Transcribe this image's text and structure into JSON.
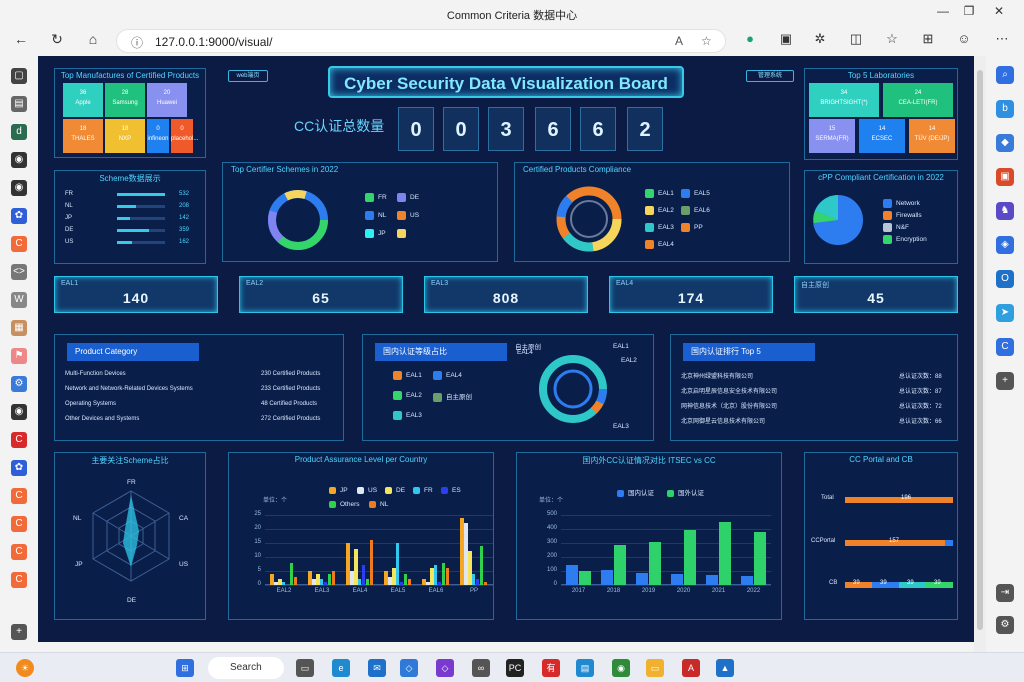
{
  "browser": {
    "window_title": "Common Criteria 数据中心",
    "url": "127.0.0.1:9000/visual/"
  },
  "header": {
    "title": "Cyber Security Data Visualization Board",
    "left_tag": "web端页",
    "right_tag": "管理系统"
  },
  "counter": {
    "label": "CC认证总数量",
    "digits": [
      "0",
      "0",
      "3",
      "6",
      "6",
      "2"
    ]
  },
  "manufacturers": {
    "title": "Top Manufactures of Certified Products",
    "tiles": [
      {
        "count": "36",
        "name": "Apple",
        "color": "#2fd0c0"
      },
      {
        "count": "28",
        "name": "Samsung",
        "color": "#20c07e"
      },
      {
        "count": "20",
        "name": "Huawei",
        "color": "#8890f0"
      },
      {
        "count": "18",
        "name": "THALES",
        "color": "#f08a34"
      },
      {
        "count": "18",
        "name": "NXP",
        "color": "#f0c030"
      },
      {
        "count": "0",
        "name": "infineon",
        "color": "#1f80f0"
      },
      {
        "count": "0",
        "name": "placehol...",
        "color": "#f05a2a"
      }
    ]
  },
  "scheme": {
    "title": "Scheme数据展示",
    "rows": [
      {
        "code": "FR",
        "value": "532"
      },
      {
        "code": "NL",
        "value": "208"
      },
      {
        "code": "JP",
        "value": "142"
      },
      {
        "code": "DE",
        "value": "359"
      },
      {
        "code": "US",
        "value": "162"
      }
    ]
  },
  "certifier": {
    "title": "Top Certifier Schemes in 2022",
    "legend": [
      {
        "label": "FR",
        "color": "#34d66a"
      },
      {
        "label": "DE",
        "color": "#7f84f0"
      },
      {
        "label": "NL",
        "color": "#2e7df0"
      },
      {
        "label": "US",
        "color": "#f0822a"
      },
      {
        "label": "JP",
        "color": "#2ff0f0"
      },
      {
        "label": "",
        "color": "#f5d55c"
      }
    ]
  },
  "compliance": {
    "title": "Certified Products Compliance",
    "legend": [
      {
        "label": "EAL1",
        "color": "#34d66a"
      },
      {
        "label": "EAL5",
        "color": "#2e7df0"
      },
      {
        "label": "EAL2",
        "color": "#f5d55c"
      },
      {
        "label": "EAL6",
        "color": "#6a9e6a"
      },
      {
        "label": "EAL3",
        "color": "#2ec8c8"
      },
      {
        "label": "PP",
        "color": "#f0822a"
      },
      {
        "label": "EAL4",
        "color": "#f0822a"
      }
    ]
  },
  "labs": {
    "title": "Top 5 Laboratories",
    "tiles": [
      {
        "count": "34",
        "name": "BRIGHTSIGHT(*)",
        "color": "#2fd0c0"
      },
      {
        "count": "24",
        "name": "CEA-LETI(FR)",
        "color": "#20c07e"
      },
      {
        "count": "15",
        "name": "SERMA(FR)",
        "color": "#8890f0"
      },
      {
        "count": "14",
        "name": "ECSEC",
        "color": "#1f80f0"
      },
      {
        "count": "14",
        "name": "TÜV (DE/JP)",
        "color": "#f08a34"
      }
    ]
  },
  "cpp": {
    "title": "cPP Compliant Certification in 2022",
    "legend": [
      {
        "label": "Network",
        "color": "#2e7df0"
      },
      {
        "label": "Firewalls",
        "color": "#f0822a"
      },
      {
        "label": "N&F",
        "color": "#b8c4d8"
      },
      {
        "label": "Encryption",
        "color": "#34d66a"
      }
    ]
  },
  "kpis": [
    {
      "label": "EAL1",
      "value": "140"
    },
    {
      "label": "EAL2",
      "value": "65"
    },
    {
      "label": "EAL3",
      "value": "808"
    },
    {
      "label": "EAL4",
      "value": "174"
    },
    {
      "label": "自主原创",
      "value": "45"
    }
  ],
  "category": {
    "title": "Product Category",
    "rows": [
      {
        "name": "Multi-Function Devices",
        "value": "230 Certified Products"
      },
      {
        "name": "Network and Network-Related Devices Systems",
        "value": "233 Certified Products"
      },
      {
        "name": "Operating Systems",
        "value": "48 Certified Products"
      },
      {
        "name": "Other Devices and Systems",
        "value": "272 Certified Products"
      }
    ]
  },
  "domestic_level": {
    "title": "国内认证等级占比",
    "legend": [
      {
        "label": "EAL1",
        "color": "#f0822a"
      },
      {
        "label": "EAL4",
        "color": "#2e7df0"
      },
      {
        "label": "EAL2",
        "color": "#34d66a"
      },
      {
        "label": "自主原创",
        "color": "#6a9e6a"
      },
      {
        "label": "EAL3",
        "color": "#2ec8c8"
      }
    ],
    "ring_labels": [
      "自主原创",
      "EAL4",
      "EAL1",
      "EAL2",
      "EAL3"
    ]
  },
  "domestic_rank": {
    "title": "国内认证排行 Top 5",
    "rows": [
      {
        "name": "北京神州绿盟科技有限公司",
        "count": "总认证次数：88"
      },
      {
        "name": "北京启明星辰信息安全技术有限公司",
        "count": "总认证次数：87"
      },
      {
        "name": "网神信息技术（北京）股份有限公司",
        "count": "总认证次数：72"
      },
      {
        "name": "北京网御星云信息技术有限公司",
        "count": "总认证次数：66"
      }
    ]
  },
  "radar": {
    "title": "主要关注Scheme占比",
    "axes": [
      "FR",
      "CA",
      "US",
      "DE",
      "JP",
      "NL"
    ]
  },
  "assurance": {
    "title": "Product Assurance Level per Country",
    "unit": "单位：个"
  },
  "itsec": {
    "title": "国内外CC认证情况对比 ITSEC vs CC",
    "unit": "单位：个"
  },
  "portal": {
    "title": "CC Portal and CB",
    "rows": [
      {
        "label": "Total",
        "value": "196"
      },
      {
        "label": "CCPortal",
        "value": "157"
      },
      {
        "label": "CB",
        "segments": [
          "39",
          "39",
          "39",
          "39"
        ]
      }
    ]
  },
  "chart_data": [
    {
      "type": "bar",
      "title": "Product Assurance Level per Country",
      "categories": [
        "EAL2",
        "EAL3",
        "EAL4",
        "EAL5",
        "EAL6",
        "PP"
      ],
      "ylim": [
        0,
        25
      ],
      "yticks": [
        0,
        5,
        10,
        15,
        20,
        25
      ],
      "series": [
        {
          "name": "JP",
          "color": "#f5a623",
          "values": [
            4,
            5,
            15,
            5,
            2,
            24
          ]
        },
        {
          "name": "US",
          "color": "#dfe6ef",
          "values": [
            1,
            2,
            5,
            3,
            1,
            22
          ]
        },
        {
          "name": "DE",
          "color": "#f5e55c",
          "values": [
            2,
            4,
            13,
            6,
            6,
            12
          ]
        },
        {
          "name": "FR",
          "color": "#2ec8f0",
          "values": [
            1,
            2,
            2,
            15,
            7,
            4
          ]
        },
        {
          "name": "ES",
          "color": "#2b3ef0",
          "values": [
            0,
            1,
            7,
            1,
            1,
            2
          ]
        },
        {
          "name": "Others",
          "color": "#2fd24a",
          "values": [
            8,
            4,
            2,
            4,
            8,
            14
          ]
        },
        {
          "name": "NL",
          "color": "#f07a1e",
          "values": [
            3,
            5,
            16,
            2,
            6,
            1
          ]
        }
      ]
    },
    {
      "type": "bar",
      "title": "国内外CC认证情况对比 ITSEC vs CC",
      "categories": [
        "2017",
        "2018",
        "2019",
        "2020",
        "2021",
        "2022"
      ],
      "ylim": [
        0,
        500
      ],
      "yticks": [
        0,
        100,
        200,
        300,
        400,
        500
      ],
      "series": [
        {
          "name": "国内认证",
          "color": "#2e7df0",
          "values": [
            145,
            110,
            85,
            80,
            70,
            65
          ]
        },
        {
          "name": "国外认证",
          "color": "#2fd26a",
          "values": [
            100,
            285,
            305,
            390,
            450,
            380
          ]
        }
      ]
    }
  ]
}
